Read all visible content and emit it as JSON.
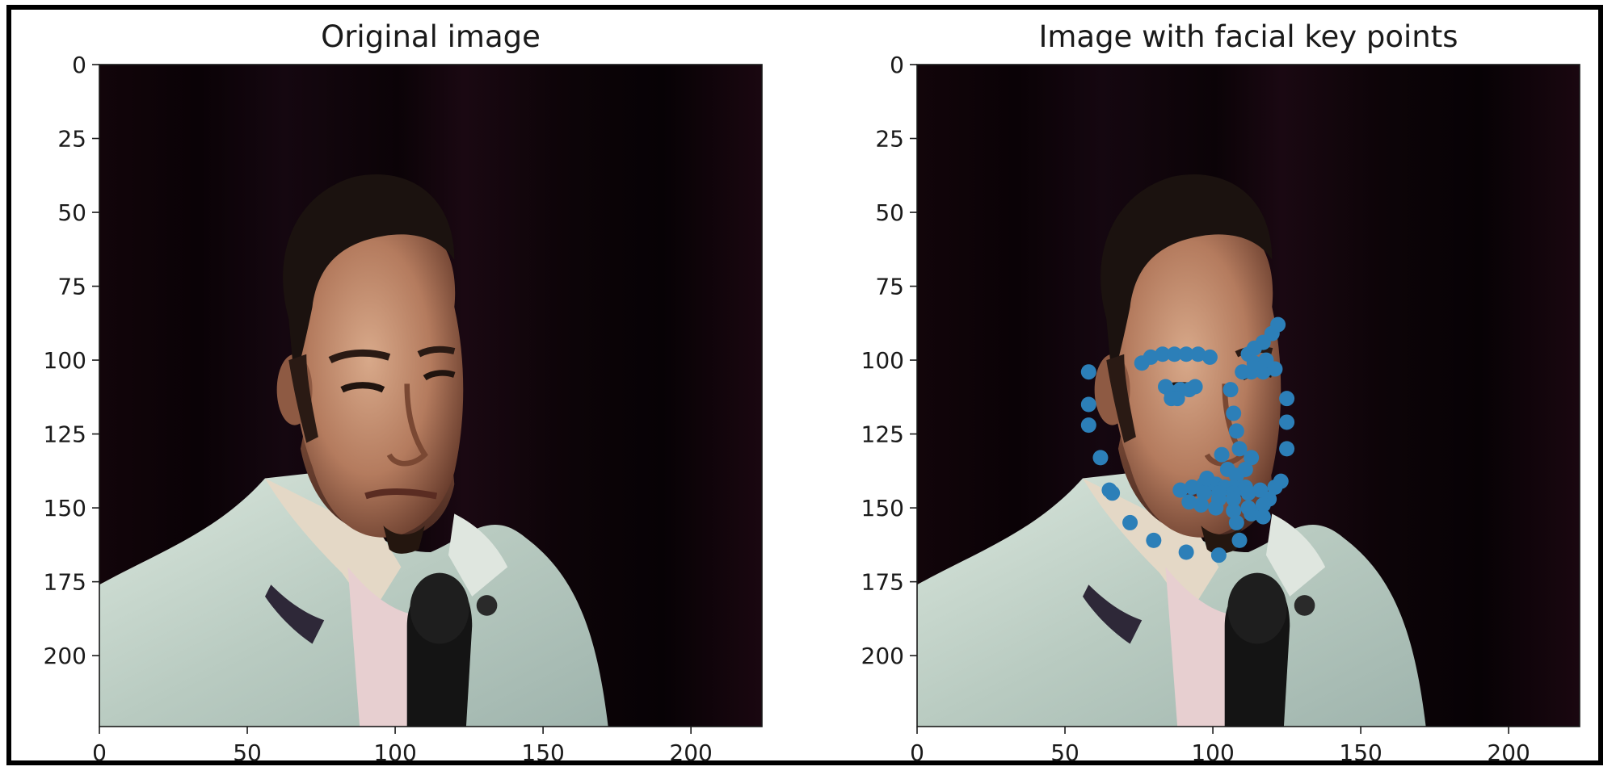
{
  "chart_data": [
    {
      "type": "image",
      "title": "Original image",
      "xlim": [
        0,
        224
      ],
      "ylim": [
        224,
        0
      ],
      "xticks": [
        0,
        50,
        100,
        150,
        200
      ],
      "yticks": [
        0,
        25,
        50,
        75,
        100,
        125,
        150,
        175,
        200
      ],
      "image_subject": "man in light shirt with microphone against dark background"
    },
    {
      "type": "scatter",
      "title": "Image with facial key points",
      "xlim": [
        0,
        224
      ],
      "ylim": [
        224,
        0
      ],
      "xticks": [
        0,
        50,
        100,
        150,
        200
      ],
      "yticks": [
        0,
        25,
        50,
        75,
        100,
        125,
        150,
        175,
        200
      ],
      "image_subject": "man in light shirt with microphone against dark background",
      "marker_color": "#2c7fb8",
      "points": [
        [
          58,
          104
        ],
        [
          58,
          115
        ],
        [
          58,
          122
        ],
        [
          62,
          133
        ],
        [
          65,
          144
        ],
        [
          66,
          145
        ],
        [
          72,
          155
        ],
        [
          80,
          161
        ],
        [
          91,
          165
        ],
        [
          102,
          166
        ],
        [
          109,
          161
        ],
        [
          113,
          152
        ],
        [
          119,
          147
        ],
        [
          123,
          141
        ],
        [
          125,
          130
        ],
        [
          125,
          121
        ],
        [
          125,
          113
        ],
        [
          76,
          101
        ],
        [
          79,
          99
        ],
        [
          83,
          98
        ],
        [
          87,
          98
        ],
        [
          91,
          98
        ],
        [
          95,
          98
        ],
        [
          99,
          99
        ],
        [
          112,
          98
        ],
        [
          114,
          96
        ],
        [
          117,
          94
        ],
        [
          120,
          91
        ],
        [
          122,
          88
        ],
        [
          106,
          110
        ],
        [
          107,
          118
        ],
        [
          108,
          124
        ],
        [
          109,
          130
        ],
        [
          103,
          132
        ],
        [
          105,
          137
        ],
        [
          108,
          139
        ],
        [
          111,
          137
        ],
        [
          113,
          133
        ],
        [
          84,
          109
        ],
        [
          86,
          111
        ],
        [
          89,
          110
        ],
        [
          92,
          110
        ],
        [
          94,
          109
        ],
        [
          88,
          113
        ],
        [
          86,
          113
        ],
        [
          110,
          104
        ],
        [
          113,
          104
        ],
        [
          117,
          104
        ],
        [
          121,
          103
        ],
        [
          114,
          101
        ],
        [
          118,
          100
        ],
        [
          89,
          144
        ],
        [
          93,
          143
        ],
        [
          97,
          142
        ],
        [
          101,
          142
        ],
        [
          104,
          143
        ],
        [
          107,
          143
        ],
        [
          111,
          143
        ],
        [
          116,
          144
        ],
        [
          121,
          143
        ],
        [
          117,
          149
        ],
        [
          112,
          150
        ],
        [
          107,
          151
        ],
        [
          101,
          150
        ],
        [
          96,
          149
        ],
        [
          92,
          148
        ],
        [
          97,
          145
        ],
        [
          102,
          145
        ],
        [
          107,
          145
        ],
        [
          112,
          145
        ],
        [
          107,
          147
        ],
        [
          102,
          147
        ],
        [
          108,
          155
        ],
        [
          117,
          153
        ],
        [
          98,
          140
        ]
      ]
    }
  ]
}
